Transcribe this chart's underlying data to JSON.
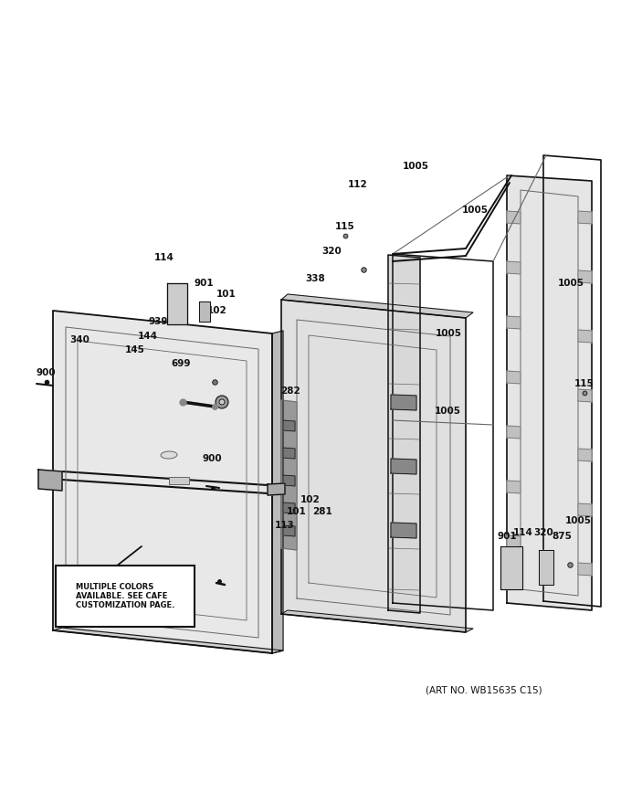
{
  "bg_color": "#ffffff",
  "art_no": "(ART NO. WB15635 C15)",
  "note_text": "MULTIPLE COLORS\nAVAILABLE. SEE CAFE\nCUSTOMIZATION PAGE."
}
